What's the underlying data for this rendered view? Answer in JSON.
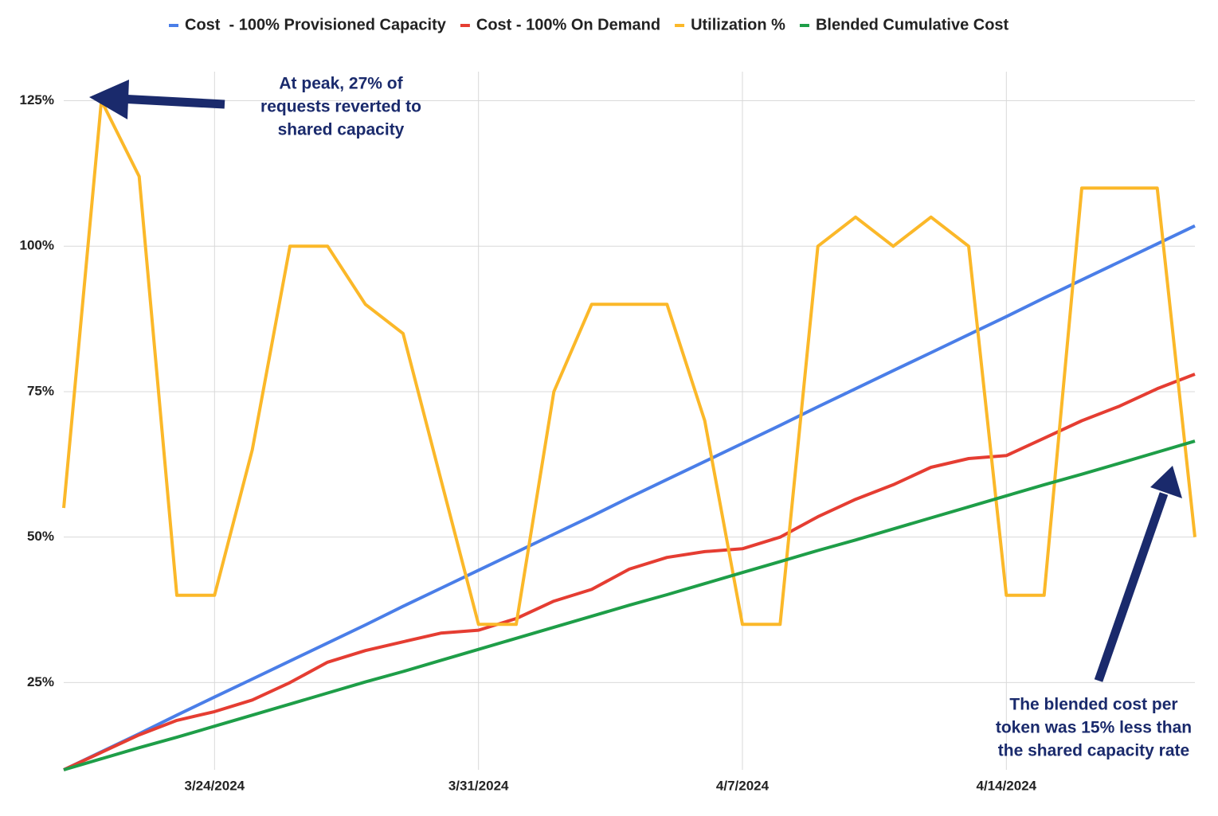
{
  "chart_data": {
    "type": "line",
    "x": [
      "3/20/2024",
      "3/21/2024",
      "3/22/2024",
      "3/23/2024",
      "3/24/2024",
      "3/25/2024",
      "3/26/2024",
      "3/27/2024",
      "3/28/2024",
      "3/29/2024",
      "3/30/2024",
      "3/31/2024",
      "4/1/2024",
      "4/2/2024",
      "4/3/2024",
      "4/4/2024",
      "4/5/2024",
      "4/6/2024",
      "4/7/2024",
      "4/8/2024",
      "4/9/2024",
      "4/10/2024",
      "4/11/2024",
      "4/12/2024",
      "4/13/2024",
      "4/14/2024",
      "4/15/2024",
      "4/16/2024",
      "4/17/2024",
      "4/18/2024",
      "4/19/2024"
    ],
    "series": [
      {
        "name": "Cost  - 100% Provisioned Capacity",
        "color": "#4a7ee8",
        "values": [
          10,
          13.1,
          16.2,
          19.4,
          22.5,
          25.6,
          28.7,
          31.8,
          34.9,
          38.1,
          41.2,
          44.3,
          47.4,
          50.5,
          53.6,
          56.8,
          59.9,
          63,
          66.1,
          69.2,
          72.4,
          75.5,
          78.6,
          81.7,
          84.8,
          87.9,
          91.1,
          94.2,
          97.3,
          100.4,
          103.5
        ]
      },
      {
        "name": "Cost - 100% On Demand",
        "color": "#e53d32",
        "values": [
          10,
          13,
          16,
          18.5,
          20,
          22,
          25,
          28.5,
          30.5,
          32,
          33.5,
          34,
          36,
          39,
          41,
          44.5,
          46.5,
          47.5,
          48,
          50,
          53.5,
          56.5,
          59,
          62,
          63.5,
          64,
          67,
          70,
          72.5,
          75.5,
          78
        ]
      },
      {
        "name": "Utilization %",
        "color": "#fbb829",
        "values": [
          55,
          125,
          112,
          40,
          40,
          65,
          100,
          100,
          90,
          85,
          60,
          35,
          35,
          75,
          90,
          90,
          90,
          70,
          35,
          35,
          100,
          105,
          100,
          105,
          100,
          40,
          40,
          110,
          110,
          110,
          50
        ]
      },
      {
        "name": "Blended Cumulative Cost",
        "color": "#1e9e48",
        "values": [
          10,
          11.9,
          13.8,
          15.6,
          17.5,
          19.4,
          21.3,
          23.2,
          25.1,
          26.9,
          28.8,
          30.7,
          32.6,
          34.5,
          36.4,
          38.3,
          40.1,
          42,
          43.9,
          45.8,
          47.7,
          49.5,
          51.4,
          53.3,
          55.2,
          57.1,
          59,
          60.8,
          62.7,
          64.6,
          66.5
        ]
      }
    ],
    "ylim": [
      10,
      130
    ],
    "yticks": [
      {
        "value": 25,
        "label": "25%"
      },
      {
        "value": 50,
        "label": "50%"
      },
      {
        "value": 75,
        "label": "75%"
      },
      {
        "value": 100,
        "label": "100%"
      },
      {
        "value": 125,
        "label": "125%"
      }
    ],
    "xticks": [
      "3/24/2024",
      "3/31/2024",
      "4/7/2024",
      "4/14/2024"
    ],
    "grid": true,
    "legend": "top",
    "annotations": [
      {
        "lines": [
          "At peak, 27% of",
          "requests reverted to",
          "shared capacity"
        ]
      },
      {
        "lines": [
          "The blended cost per",
          "token was 15% less than",
          "the shared capacity rate"
        ]
      }
    ]
  }
}
